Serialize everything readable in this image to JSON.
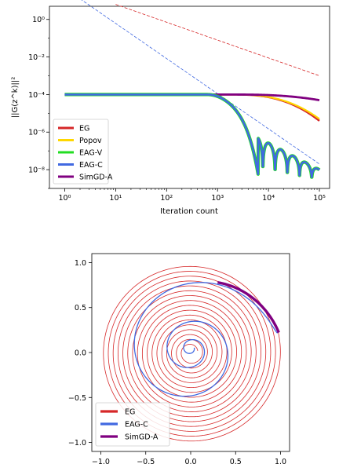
{
  "chart_data": [
    {
      "type": "line",
      "xlabel": "Iteration count",
      "ylabel": "||G(z^k)||²",
      "xscale": "log",
      "yscale": "log",
      "xlim_exp": [
        -0.3,
        5.2
      ],
      "ylim_exp": [
        -9,
        0.7
      ],
      "xticks": [
        "10⁰",
        "10¹",
        "10²",
        "10³",
        "10⁴",
        "10⁵"
      ],
      "yticks": [
        "10⁻⁸",
        "10⁻⁶",
        "10⁻⁴",
        "10⁻²",
        "10⁰"
      ],
      "legend_position": "lower-left",
      "series": [
        {
          "name": "EG",
          "color": "#d62728",
          "plateau_exp": -4,
          "end_exp": -5.4
        },
        {
          "name": "Popov",
          "color": "#ffd700",
          "plateau_exp": -4,
          "end_exp": -5.3
        },
        {
          "name": "EAG-V",
          "color": "#22dd22",
          "drop_start_exp": 2.8,
          "end_exp": -8
        },
        {
          "name": "EAG-C",
          "color": "#4169e1",
          "drop_start_exp": 2.8,
          "end_exp": -8
        },
        {
          "name": "SimGD-A",
          "color": "#800080",
          "plateau_exp": -4,
          "end_exp": -4.3
        }
      ],
      "reference_lines": [
        {
          "color": "#d62728",
          "style": "dashed",
          "from": [
            1,
            0.8
          ],
          "to": [
            5,
            -3
          ]
        },
        {
          "color": "#4169e1",
          "style": "dashed",
          "from": [
            0.3,
            1.1
          ],
          "to": [
            5,
            -7.7
          ]
        }
      ]
    },
    {
      "type": "line",
      "xlim": [
        -1.1,
        1.1
      ],
      "ylim": [
        -1.1,
        1.1
      ],
      "xticks": [
        "−1.0",
        "−0.5",
        "0.0",
        "0.5",
        "1.0"
      ],
      "yticks": [
        "−1.0",
        "−0.5",
        "0.0",
        "0.5",
        "1.0"
      ],
      "xtick_values": [
        -1,
        -0.5,
        0,
        0.5,
        1
      ],
      "ytick_values": [
        -1,
        -0.5,
        0,
        0.5,
        1
      ],
      "legend_position": "lower-left",
      "series": [
        {
          "name": "EG",
          "color": "#d62728",
          "shape": "spiral",
          "start_radius": 1.0,
          "end_radius": 0.08,
          "turns": 17
        },
        {
          "name": "EAG-C",
          "color": "#4169e1",
          "shape": "spiral-in",
          "start": [
            0.97,
            0.22
          ],
          "end": [
            0.0,
            0.05
          ]
        },
        {
          "name": "SimGD-A",
          "color": "#800080",
          "shape": "arc",
          "start": [
            0.97,
            0.22
          ],
          "end": [
            0.3,
            0.78
          ]
        }
      ]
    }
  ]
}
